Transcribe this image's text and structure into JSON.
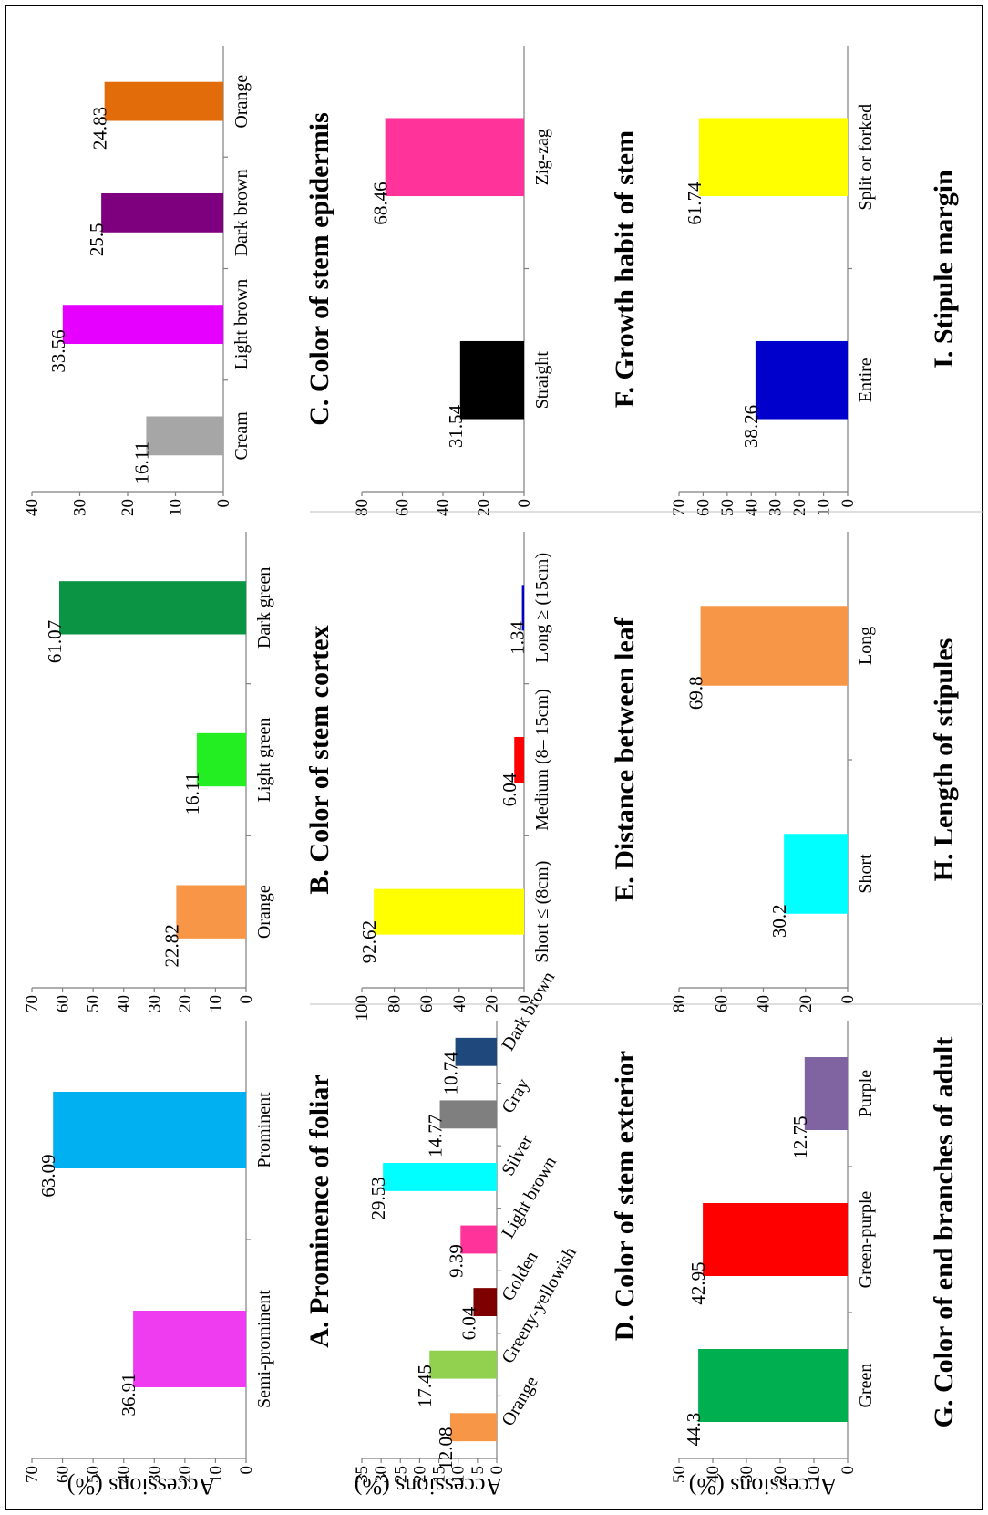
{
  "y_axis_label": "Accessions (%)",
  "chart_data": [
    {
      "id": "A",
      "type": "bar",
      "title": "A. Prominence of foliar",
      "ylabel": "Accessions (%)",
      "ylim": [
        0,
        70
      ],
      "yticks": [
        0,
        10,
        20,
        30,
        40,
        50,
        60,
        70
      ],
      "categories": [
        "Semi-prominent",
        "Prominent"
      ],
      "values": [
        36.91,
        63.09
      ],
      "labels": [
        "36.91",
        "63.09"
      ],
      "colors": [
        "#f03cf0",
        "#00b0f0"
      ]
    },
    {
      "id": "B",
      "type": "bar",
      "title": "B. Color of stem cortex",
      "ylabel": "",
      "ylim": [
        0,
        70
      ],
      "yticks": [
        0,
        10,
        20,
        30,
        40,
        50,
        60,
        70
      ],
      "categories": [
        "Orange",
        "Light green",
        "Dark green"
      ],
      "values": [
        22.82,
        16.11,
        61.07
      ],
      "labels": [
        "22.82",
        "16.11",
        "61.07"
      ],
      "colors": [
        "#f79646",
        "#22ee22",
        "#0a9444"
      ]
    },
    {
      "id": "C",
      "type": "bar",
      "title": "C. Color of stem epidermis",
      "ylabel": "",
      "ylim": [
        0,
        40
      ],
      "yticks": [
        0,
        10,
        20,
        30,
        40
      ],
      "categories": [
        "Cream",
        "Light brown",
        "Dark brown",
        "Orange"
      ],
      "values": [
        16.11,
        33.56,
        25.5,
        24.83
      ],
      "labels": [
        "16.11",
        "33.56",
        "25.5",
        "24.83"
      ],
      "colors": [
        "#a6a6a6",
        "#e500ff",
        "#7f007f",
        "#e36c0a"
      ]
    },
    {
      "id": "D",
      "type": "bar",
      "title": "D. Color of stem exterior",
      "ylabel": "Accessions (%)",
      "ylim": [
        0,
        35
      ],
      "yticks": [
        0,
        5,
        10,
        15,
        20,
        25,
        30,
        35
      ],
      "categories": [
        "Orange",
        "Greeny-yellowish",
        "Golden",
        "Light brown",
        "Silver",
        "Gray",
        "Dark brown"
      ],
      "values": [
        12.08,
        17.45,
        6.04,
        9.39,
        29.53,
        14.77,
        10.74
      ],
      "labels": [
        "12.08",
        "17.45",
        "6.04",
        "9.39",
        "29.53",
        "14.77",
        "10.74"
      ],
      "colors": [
        "#f79646",
        "#92d050",
        "#7f0000",
        "#ff3399",
        "#00ffff",
        "#7f7f7f",
        "#1f497d"
      ]
    },
    {
      "id": "E",
      "type": "bar",
      "title": "E. Distance between leaf",
      "ylabel": "",
      "ylim": [
        0,
        100
      ],
      "yticks": [
        0,
        20,
        40,
        60,
        80,
        100
      ],
      "categories": [
        "Short ≤ (8cm)",
        "Medium (8– 15cm)",
        "Long ≥ (15cm)"
      ],
      "values": [
        92.62,
        6.04,
        1.34
      ],
      "labels": [
        "92.62",
        "6.04",
        "1.34"
      ],
      "colors": [
        "#ffff00",
        "#ff0000",
        "#0000cc"
      ]
    },
    {
      "id": "F",
      "type": "bar",
      "title": "F. Growth habit of stem",
      "ylabel": "",
      "ylim": [
        0,
        80
      ],
      "yticks": [
        0,
        20,
        40,
        60,
        80
      ],
      "categories": [
        "Straight",
        "Zig-zag"
      ],
      "values": [
        31.54,
        68.46
      ],
      "labels": [
        "31.54",
        "68.46"
      ],
      "colors": [
        "#000000",
        "#ff3399"
      ]
    },
    {
      "id": "G",
      "type": "bar",
      "title": "G. Color of end branches of adult",
      "ylabel": "Accessions (%)",
      "ylim": [
        0,
        50
      ],
      "yticks": [
        0,
        10,
        20,
        30,
        40,
        50
      ],
      "categories": [
        "Green",
        "Green-purple",
        "Purple"
      ],
      "values": [
        44.3,
        42.95,
        12.75
      ],
      "labels": [
        "44.3",
        "42.95",
        "12.75"
      ],
      "colors": [
        "#00b050",
        "#ff0000",
        "#8064a2"
      ]
    },
    {
      "id": "H",
      "type": "bar",
      "title": "H. Length of stipules",
      "ylabel": "",
      "ylim": [
        0,
        80
      ],
      "yticks": [
        0,
        20,
        40,
        60,
        80
      ],
      "categories": [
        "Short",
        "Long"
      ],
      "values": [
        30.2,
        69.8
      ],
      "labels": [
        "30.2",
        "69.8"
      ],
      "colors": [
        "#00ffff",
        "#f79646"
      ]
    },
    {
      "id": "I",
      "type": "bar",
      "title": "I. Stipule margin",
      "ylabel": "",
      "ylim": [
        0,
        70
      ],
      "yticks": [
        0,
        10,
        20,
        30,
        40,
        50,
        60,
        70
      ],
      "categories": [
        "Entire",
        "Split or forked"
      ],
      "values": [
        38.26,
        61.74
      ],
      "labels": [
        "38.26",
        "61.74"
      ],
      "colors": [
        "#0000cc",
        "#ffff00"
      ]
    }
  ]
}
